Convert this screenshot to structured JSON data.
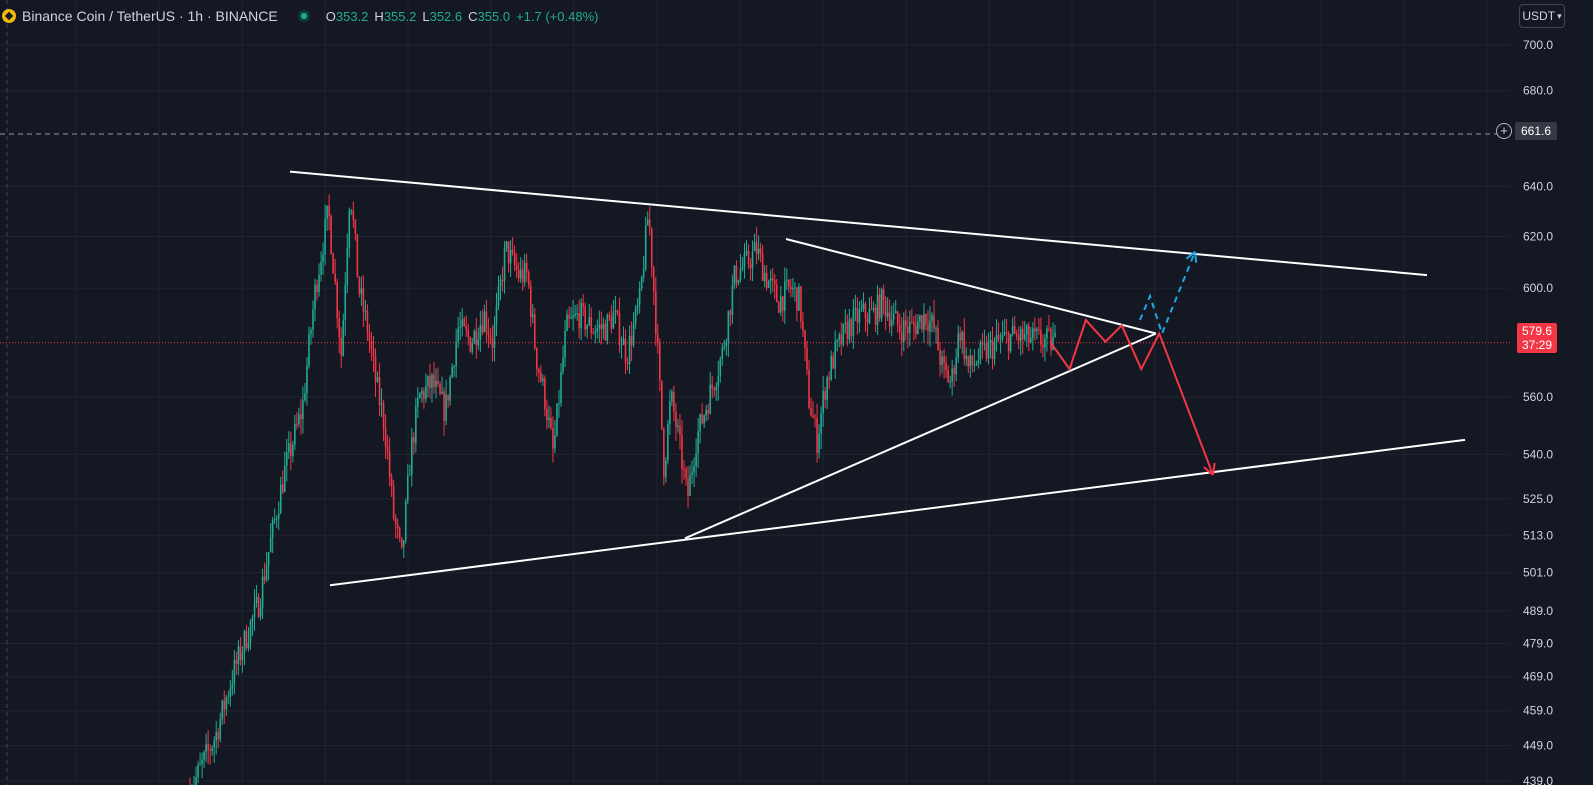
{
  "header": {
    "symbol_title": "Binance Coin / TetherUS · 1h · BINANCE",
    "ohlc": {
      "o_label": "O",
      "o_value": "353.2",
      "h_label": "H",
      "h_value": "355.2",
      "l_label": "L",
      "l_value": "352.6",
      "c_label": "C",
      "c_value": "355.0",
      "change": "+1.7 (+0.48%)"
    }
  },
  "currency_selector": {
    "label": "USDT",
    "icon": "chevron-down-icon"
  },
  "crosshair": {
    "price_label": "661.6",
    "icon": "plus-circle-icon"
  },
  "last_price": {
    "price": "579.6",
    "countdown": "37:29"
  },
  "colors": {
    "background": "#141823",
    "up": "#22ab94",
    "down": "#f23645",
    "pattern_lines": "#ffffff",
    "projection_down": "#f23645",
    "projection_up": "#1ea7e6",
    "axis_text": "#d1d4dc"
  },
  "chart_data": {
    "type": "candlestick",
    "y_scale": "log",
    "ylim": [
      437,
      712
    ],
    "grid": true,
    "y_ticks": [
      "700.0",
      "680.0",
      "640.0",
      "620.0",
      "600.0",
      "560.0",
      "540.0",
      "525.0",
      "513.0",
      "501.0",
      "489.0",
      "479.0",
      "469.0",
      "459.0",
      "449.0",
      "439.0"
    ],
    "price_path": [
      [
        0,
        436
      ],
      [
        0.03,
        452
      ],
      [
        0.05,
        470
      ],
      [
        0.08,
        492
      ],
      [
        0.11,
        535
      ],
      [
        0.13,
        556
      ],
      [
        0.145,
        600
      ],
      [
        0.16,
        630
      ],
      [
        0.175,
        575
      ],
      [
        0.185,
        640
      ],
      [
        0.195,
        600
      ],
      [
        0.205,
        585
      ],
      [
        0.215,
        565
      ],
      [
        0.225,
        550
      ],
      [
        0.235,
        520
      ],
      [
        0.245,
        505
      ],
      [
        0.255,
        540
      ],
      [
        0.265,
        560
      ],
      [
        0.28,
        565
      ],
      [
        0.295,
        555
      ],
      [
        0.31,
        585
      ],
      [
        0.325,
        580
      ],
      [
        0.34,
        590
      ],
      [
        0.35,
        580
      ],
      [
        0.365,
        615
      ],
      [
        0.38,
        605
      ],
      [
        0.39,
        605
      ],
      [
        0.4,
        575
      ],
      [
        0.41,
        560
      ],
      [
        0.42,
        540
      ],
      [
        0.435,
        585
      ],
      [
        0.45,
        590
      ],
      [
        0.465,
        585
      ],
      [
        0.48,
        585
      ],
      [
        0.49,
        590
      ],
      [
        0.505,
        575
      ],
      [
        0.52,
        595
      ],
      [
        0.53,
        630
      ],
      [
        0.54,
        580
      ],
      [
        0.548,
        535
      ],
      [
        0.556,
        560
      ],
      [
        0.565,
        545
      ],
      [
        0.575,
        525
      ],
      [
        0.585,
        545
      ],
      [
        0.6,
        560
      ],
      [
        0.615,
        575
      ],
      [
        0.63,
        605
      ],
      [
        0.645,
        610
      ],
      [
        0.655,
        615
      ],
      [
        0.665,
        605
      ],
      [
        0.68,
        595
      ],
      [
        0.695,
        600
      ],
      [
        0.705,
        595
      ],
      [
        0.715,
        560
      ],
      [
        0.725,
        545
      ],
      [
        0.735,
        565
      ],
      [
        0.745,
        575
      ],
      [
        0.76,
        585
      ],
      [
        0.775,
        590
      ],
      [
        0.79,
        590
      ],
      [
        0.8,
        595
      ],
      [
        0.81,
        590
      ],
      [
        0.82,
        585
      ],
      [
        0.835,
        585
      ],
      [
        0.85,
        590
      ],
      [
        0.86,
        585
      ],
      [
        0.87,
        570
      ],
      [
        0.88,
        565
      ],
      [
        0.89,
        585
      ],
      [
        0.9,
        570
      ],
      [
        0.915,
        575
      ],
      [
        0.935,
        580
      ],
      [
        0.95,
        582
      ],
      [
        1,
        579.6
      ]
    ],
    "trend_lines": [
      {
        "name": "upper-outer",
        "from": [
          0.22,
          646
        ],
        "to": [
          1.0,
          605
        ]
      },
      {
        "name": "upper-inner",
        "from": [
          0.58,
          619
        ],
        "to": [
          1.0,
          583
        ]
      },
      {
        "name": "lower-outer",
        "from": [
          0.155,
          497
        ],
        "to": [
          1.0,
          545
        ]
      },
      {
        "name": "lower-inner",
        "from": [
          0.52,
          512
        ],
        "to": [
          1.0,
          583
        ]
      }
    ],
    "projection_down": [
      [
        0,
        580
      ],
      [
        0.12,
        570
      ],
      [
        0.22,
        588
      ],
      [
        0.34,
        580
      ],
      [
        0.44,
        586
      ],
      [
        0.56,
        570
      ],
      [
        0.67,
        583
      ],
      [
        1.0,
        533
      ]
    ],
    "projection_up": [
      [
        0,
        583
      ],
      [
        1.0,
        614
      ]
    ],
    "last_price_level": 579.6,
    "crosshair_level": 661.6
  }
}
